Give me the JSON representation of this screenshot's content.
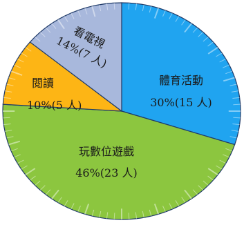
{
  "chart_data": {
    "type": "pie",
    "slices": [
      {
        "name": "體育活動",
        "value": 30,
        "count_label": "30%(15 人)",
        "color": "#20a4f0"
      },
      {
        "name": "玩數位遊戲",
        "value": 46,
        "count_label": "46%(23 人)",
        "color": "#8cc63f"
      },
      {
        "name": "閱讀",
        "value": 10,
        "count_label": "10%(5 人)",
        "color": "#fdb515"
      },
      {
        "name": "看電視",
        "value": 14,
        "count_label": "14%(7 人)",
        "color": "#a8b8dc"
      }
    ],
    "start_angle_deg": 0,
    "direction": "clockwise"
  }
}
